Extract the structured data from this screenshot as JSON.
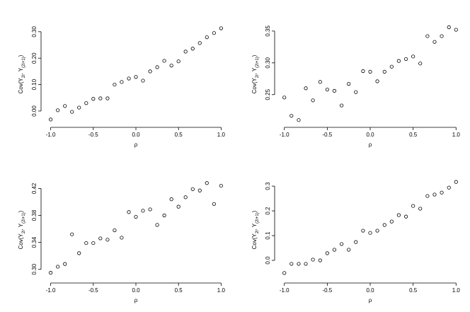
{
  "chart_data": [
    {
      "type": "scatter",
      "xlabel": "ρ",
      "ylabel": [
        "Cov(Y",
        "2i",
        ", Y",
        "(2i+1)",
        ")"
      ],
      "color": "#000000",
      "x": [
        -1,
        -0.917,
        -0.833,
        -0.75,
        -0.667,
        -0.583,
        -0.5,
        -0.417,
        -0.333,
        -0.25,
        -0.167,
        -0.083,
        0,
        0.083,
        0.167,
        0.25,
        0.333,
        0.417,
        0.5,
        0.583,
        0.667,
        0.75,
        0.833,
        0.917,
        1
      ],
      "values": [
        -0.032,
        0.003,
        0.019,
        -0.003,
        0.013,
        0.03,
        0.046,
        0.048,
        0.048,
        0.1,
        0.11,
        0.123,
        0.129,
        0.115,
        0.15,
        0.166,
        0.19,
        0.172,
        0.188,
        0.225,
        0.236,
        0.257,
        0.279,
        0.295,
        0.313
      ],
      "xlim": [
        -1.08,
        1.08
      ],
      "xticks": [
        {
          "value": -1,
          "label": "-1.0"
        },
        -0.5,
        {
          "value": 0,
          "label": "0.0"
        },
        0.5,
        {
          "value": 1,
          "label": "1.0"
        }
      ],
      "ylim": [
        -0.051,
        0.329
      ],
      "yticks": [
        {
          "value": 0,
          "label": "0.00"
        },
        {
          "value": 0.1,
          "label": "0.10"
        },
        {
          "value": 0.2,
          "label": "0.20"
        },
        {
          "value": 0.3,
          "label": "0.30"
        }
      ]
    },
    {
      "type": "scatter",
      "xlabel": "ρ",
      "ylabel": [
        "Cov(Y",
        "2i",
        ", Y",
        "(2i+1)",
        ")"
      ],
      "color": "#000000",
      "x": [
        -1,
        -0.917,
        -0.833,
        -0.75,
        -0.667,
        -0.583,
        -0.5,
        -0.417,
        -0.333,
        -0.25,
        -0.167,
        -0.083,
        0,
        0.083,
        0.167,
        0.25,
        0.333,
        0.417,
        0.5,
        0.583,
        0.667,
        0.75,
        0.833,
        0.917,
        1
      ],
      "values": [
        0.2455,
        0.2167,
        0.21,
        0.26,
        0.241,
        0.27,
        0.258,
        0.256,
        0.233,
        0.267,
        0.254,
        0.287,
        0.286,
        0.271,
        0.286,
        0.294,
        0.303,
        0.306,
        0.31,
        0.299,
        0.342,
        0.333,
        0.342,
        0.356,
        0.352
      ],
      "xlim": [
        -1.08,
        1.08
      ],
      "xticks": [
        {
          "value": -1,
          "label": "-1.0"
        },
        -0.5,
        {
          "value": 0,
          "label": "0.0"
        },
        0.5,
        {
          "value": 1,
          "label": "1.0"
        }
      ],
      "ylim": [
        0.203,
        0.361
      ],
      "yticks": [
        0.25,
        {
          "value": 0.3,
          "label": "0.30"
        },
        0.35
      ]
    },
    {
      "type": "scatter",
      "xlabel": "ρ",
      "ylabel": [
        "Cov(Y",
        "2i",
        ", Y",
        "(2i+1)",
        ")"
      ],
      "color": "#000000",
      "x": [
        -1,
        -0.917,
        -0.833,
        -0.75,
        -0.667,
        -0.583,
        -0.5,
        -0.417,
        -0.333,
        -0.25,
        -0.167,
        -0.083,
        0,
        0.083,
        0.167,
        0.25,
        0.333,
        0.417,
        0.5,
        0.583,
        0.667,
        0.75,
        0.833,
        0.917,
        1
      ],
      "values": [
        0.295,
        0.304,
        0.308,
        0.352,
        0.324,
        0.339,
        0.339,
        0.346,
        0.344,
        0.358,
        0.347,
        0.385,
        0.378,
        0.387,
        0.389,
        0.366,
        0.38,
        0.404,
        0.393,
        0.407,
        0.419,
        0.417,
        0.428,
        0.397,
        0.424
      ],
      "xlim": [
        -1.08,
        1.08
      ],
      "xticks": [
        {
          "value": -1,
          "label": "-1.0"
        },
        -0.5,
        {
          "value": 0,
          "label": "0.0"
        },
        0.5,
        {
          "value": 1,
          "label": "1.0"
        }
      ],
      "ylim": [
        0.284,
        0.433
      ],
      "yticks": [
        {
          "value": 0.3,
          "label": "0.30"
        },
        0.34,
        0.38,
        0.42
      ]
    },
    {
      "type": "scatter",
      "xlabel": "ρ",
      "ylabel": [
        "Cov(Y",
        "2i",
        ", Y",
        "(2i+1)",
        ")"
      ],
      "color": "#000000",
      "x": [
        -1,
        -0.917,
        -0.833,
        -0.75,
        -0.667,
        -0.583,
        -0.5,
        -0.417,
        -0.333,
        -0.25,
        -0.167,
        -0.083,
        0,
        0.083,
        0.167,
        0.25,
        0.333,
        0.417,
        0.5,
        0.583,
        0.667,
        0.75,
        0.833,
        0.917,
        1
      ],
      "values": [
        -0.051,
        -0.014,
        -0.014,
        -0.014,
        0.003,
        0,
        0.029,
        0.043,
        0.066,
        0.043,
        0.074,
        0.12,
        0.111,
        0.12,
        0.143,
        0.157,
        0.183,
        0.177,
        0.22,
        0.209,
        0.26,
        0.266,
        0.274,
        0.294,
        0.317
      ],
      "xlim": [
        -1.08,
        1.08
      ],
      "xticks": [
        {
          "value": -1,
          "label": "-1.0"
        },
        -0.5,
        {
          "value": 0,
          "label": "0.0"
        },
        0.5,
        {
          "value": 1,
          "label": "1.0"
        }
      ],
      "ylim": [
        -0.08,
        0.326
      ],
      "yticks": [
        {
          "value": 0,
          "label": "0.0"
        },
        0.1,
        0.2,
        0.3
      ]
    }
  ]
}
